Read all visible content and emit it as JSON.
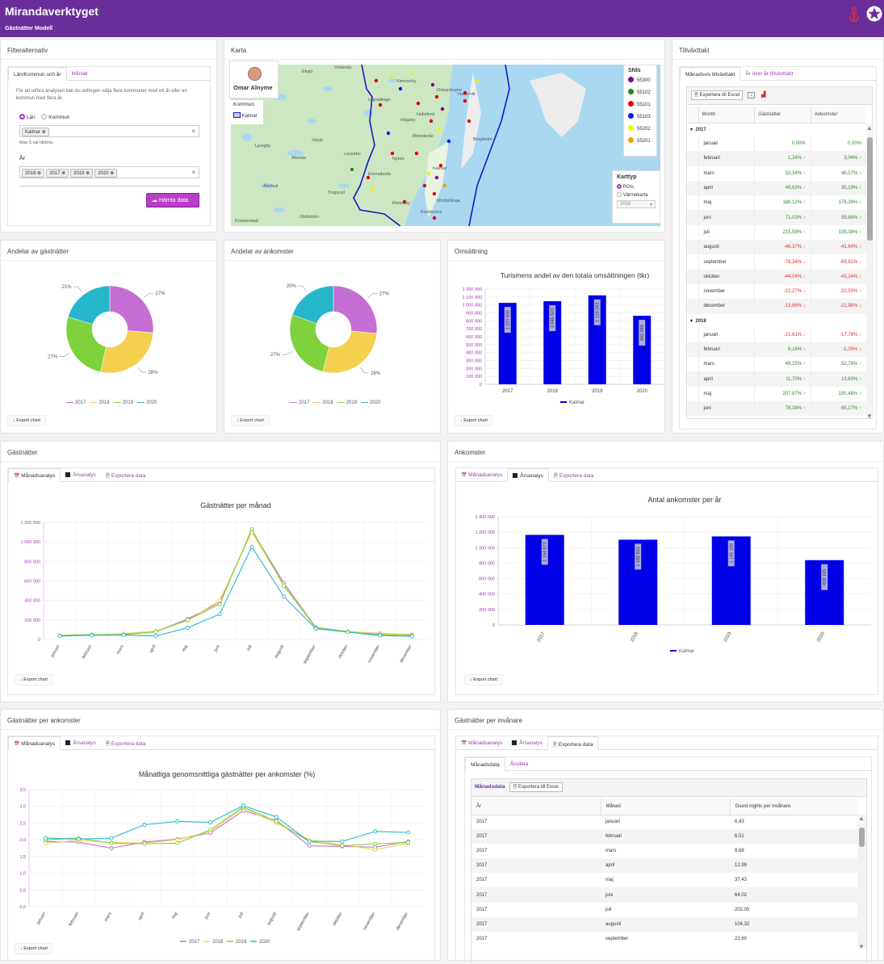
{
  "app": {
    "title": "Mirandaverktyget",
    "subtitle": "Gästnätter Modell"
  },
  "filter": {
    "title": "Filteralternativ",
    "tab1": "Län/Kommun och år",
    "tab2": "Månad",
    "desc": "För att utföra analysen kan du antingen välja flera kommuner med ett år eller en kommun med flera år.",
    "radio_lan": "Län",
    "radio_kommun": "Kommun",
    "kommun_chip": "Kalmar",
    "hint": "Max 5 val tillåtna.",
    "year_label": "År",
    "years": [
      "2018",
      "2017",
      "2019",
      "2020"
    ],
    "fetch_btn": "Hämta data"
  },
  "map": {
    "title": "Karta",
    "user": "Omar Alnyme",
    "kommun_label": "Kommun",
    "kommun_value": "Kalmar",
    "snis_title": "SNIs",
    "snis": [
      {
        "code": "55300",
        "color": "#7b0a86"
      },
      {
        "code": "55102",
        "color": "#178a17"
      },
      {
        "code": "55101",
        "color": "#e00000"
      },
      {
        "code": "55103",
        "color": "#0018e8"
      },
      {
        "code": "55202",
        "color": "#f1f200"
      },
      {
        "code": "55201",
        "color": "#f0a000"
      }
    ],
    "karttyp": "Karttyp",
    "opt1": "POIs",
    "opt2": "Värmekarta",
    "year": "2018",
    "places": [
      "Vetlanda",
      "Vimmerby",
      "Eksjö",
      "Västervik",
      "Hultsfred",
      "Oskarshamn",
      "Växjö",
      "Nybro",
      "Kalmar",
      "Emmaboda",
      "Karlskrona",
      "Ronneby",
      "Borgholm",
      "Tingsryd",
      "Lessebo",
      "Älmhult",
      "Ljungby",
      "Alvesta",
      "Olofström",
      "Uppvidinge",
      "Högsby",
      "Mönsterås",
      "Mörbylånga",
      "Kristianstad"
    ]
  },
  "growth": {
    "title": "Tillväxttakt",
    "tab1": "Månadsvis tillväxttakt",
    "tab2": "År över år tillväxttakt",
    "export": "Exportera till Excel",
    "cols": [
      "Month",
      "Gästnätter",
      "Ankomster"
    ],
    "groups": [
      {
        "year": "2017",
        "rows": [
          [
            "januari",
            "0,00%",
            "0,00%"
          ],
          [
            "februari",
            "1,34%",
            "3,04%"
          ],
          [
            "mars",
            "33,34%",
            "46,07%"
          ],
          [
            "april",
            "49,63%",
            "35,19%"
          ],
          [
            "maj",
            "188,12%",
            "176,39%"
          ],
          [
            "juni",
            "71,03%",
            "59,68%"
          ],
          [
            "juli",
            "215,59%",
            "139,38%"
          ],
          [
            "augusti",
            "-48,37%",
            "-41,64%"
          ],
          [
            "september",
            "-78,34%",
            "-69,91%"
          ],
          [
            "oktober",
            "-44,04%",
            "-43,24%"
          ],
          [
            "november",
            "-22,27%",
            "-20,93%"
          ],
          [
            "december",
            "-13,66%",
            "-21,98%"
          ]
        ]
      },
      {
        "year": "2018",
        "rows": [
          [
            "januari",
            "-21,61%",
            "-17,76%"
          ],
          [
            "februari",
            "6,16%",
            "-1,05%"
          ],
          [
            "mars",
            "49,25%",
            "52,78%"
          ],
          [
            "april",
            "11,70%",
            "13,60%"
          ],
          [
            "maj",
            "207,87%",
            "190,48%"
          ],
          [
            "juni",
            "78,38%",
            "65,17%"
          ]
        ]
      }
    ]
  },
  "andelar_g": {
    "title": "Andelar av gästnätter",
    "labels": [
      "27%",
      "28%",
      "27%",
      "21%"
    ]
  },
  "andelar_a": {
    "title": "Andelar av ankomster",
    "labels": [
      "27%",
      "28%",
      "27%",
      "20%"
    ]
  },
  "oms": {
    "title": "Omsättning",
    "chart_title": "Turismens andel av den totala omsättningen (tkr)",
    "legend": "Kalmar"
  },
  "gn": {
    "title": "Gästnätter",
    "tab1": "Månadsanalys",
    "tab2": "Årsanalys",
    "tab3": "Exportera data",
    "chart_title": "Gästnätter per månad"
  },
  "ank": {
    "title": "Ankomster",
    "tab1": "Månadsanalys",
    "tab2": "Årsanalys",
    "tab3": "Exportera data",
    "chart_title": "Antal ankomster per år",
    "legend": "Kalmar"
  },
  "gpa": {
    "title": "Gästnätter per ankomster",
    "tab1": "Månadsanalys",
    "tab2": "Årsanalys",
    "tab3": "Exportera data",
    "chart_title": "Månatliga genomsnittliga gästnätter per ankomster (%)"
  },
  "gpi": {
    "title": "Gästnätter per invånare",
    "tab1": "Månadsanalys",
    "tab2": "Årsanalys",
    "tab3": "Exportera data",
    "subtab1": "Månadsdata",
    "subtab2": "Årsdata",
    "inner_title": "Månadsdata",
    "export": "Exportera till Excel",
    "cols": [
      "År",
      "Månad",
      "Guest nights per invånare"
    ],
    "rows": [
      [
        "2017",
        "januari",
        "6,43"
      ],
      [
        "2017",
        "februari",
        "6,51"
      ],
      [
        "2017",
        "mars",
        "8,68"
      ],
      [
        "2017",
        "april",
        "12,99"
      ],
      [
        "2017",
        "maj",
        "37,43"
      ],
      [
        "2017",
        "juni",
        "64,02"
      ],
      [
        "2017",
        "juli",
        "202,05"
      ],
      [
        "2017",
        "augusti",
        "104,32"
      ],
      [
        "2017",
        "september",
        "22,60"
      ]
    ]
  },
  "export_chart": "Export chart",
  "colors": {
    "purple": "#6a2e9b",
    "accent": "#a23bb4",
    "y2017": "#c46ed3",
    "y2018": "#f5d04e",
    "y2019": "#7ed23b",
    "y2020": "#27b7cc",
    "bar": "#0000e6"
  },
  "chart_data": [
    {
      "type": "pie",
      "title": "",
      "categories": [
        "2017",
        "2018",
        "2019",
        "2020"
      ],
      "values": [
        27,
        28,
        27,
        21
      ]
    },
    {
      "type": "pie",
      "title": "",
      "categories": [
        "2017",
        "2018",
        "2019",
        "2020"
      ],
      "values": [
        27,
        28,
        27,
        20
      ]
    },
    {
      "type": "bar",
      "title": "Turismens andel av den totala omsättningen (tkr)",
      "categories": [
        "2017",
        "2018",
        "2019",
        "2020"
      ],
      "series": [
        {
          "name": "Kalmar",
          "values": [
            1025656,
            1046623,
            1120593,
            862889
          ]
        }
      ],
      "value_labels": [
        "1 025 656",
        "1 046 623",
        "1 120 593",
        "862 889"
      ],
      "yticks": [
        "0",
        "100 000",
        "200 000",
        "300 000",
        "400 000",
        "500 000",
        "600 000",
        "700 000",
        "800 000",
        "900 000",
        "1 000 000",
        "1 100 000",
        "1 200 000"
      ],
      "ylim": [
        0,
        1200000
      ]
    },
    {
      "type": "line",
      "title": "Gästnätter per månad",
      "categories": [
        "januari",
        "februari",
        "mars",
        "april",
        "maj",
        "juni",
        "juli",
        "augusti",
        "september",
        "oktober",
        "november",
        "december"
      ],
      "series": [
        {
          "name": "2017",
          "values": [
            40000,
            48000,
            55000,
            80000,
            210000,
            380000,
            1120000,
            580000,
            125000,
            80000,
            62000,
            50000
          ]
        },
        {
          "name": "2018",
          "values": [
            38000,
            45000,
            60000,
            85000,
            195000,
            400000,
            1100000,
            560000,
            120000,
            82000,
            60000,
            48000
          ]
        },
        {
          "name": "2019",
          "values": [
            42000,
            50000,
            48000,
            78000,
            200000,
            360000,
            1130000,
            550000,
            118000,
            78000,
            50000,
            40000
          ]
        },
        {
          "name": "2020",
          "values": [
            35000,
            42000,
            45000,
            35000,
            120000,
            260000,
            950000,
            440000,
            110000,
            75000,
            40000,
            32000
          ]
        }
      ],
      "yticks": [
        "0",
        "200 000",
        "400 000",
        "600 000",
        "800 000",
        "1 000 000",
        "1 200 000"
      ],
      "ylim": [
        0,
        1200000
      ]
    },
    {
      "type": "bar",
      "title": "Antal ankomster per år",
      "categories": [
        "2017",
        "2018",
        "2019",
        "2020"
      ],
      "series": [
        {
          "name": "Kalmar",
          "values": [
            1164872,
            1102631,
            1145189,
            838105
          ]
        }
      ],
      "value_labels": [
        "1 164 872",
        "1 102 631",
        "1 145 189",
        "838 105"
      ],
      "yticks": [
        "0",
        "200 000",
        "400 000",
        "600 000",
        "800 000",
        "1 000 000",
        "1 200 000",
        "1 400 000"
      ],
      "ylim": [
        0,
        1400000
      ]
    },
    {
      "type": "line",
      "title": "Månatliga genomsnittliga gästnätter per ankomster (%)",
      "categories": [
        "januari",
        "februari",
        "mars",
        "april",
        "maj",
        "juni",
        "juli",
        "augusti",
        "september",
        "oktober",
        "november",
        "december"
      ],
      "series": [
        {
          "name": "2017",
          "values": [
            1.95,
            1.93,
            1.75,
            1.93,
            2.02,
            2.2,
            2.87,
            2.58,
            1.82,
            1.8,
            1.78,
            1.95
          ]
        },
        {
          "name": "2018",
          "values": [
            1.9,
            1.98,
            1.92,
            1.9,
            2.0,
            2.25,
            2.95,
            2.5,
            2.0,
            1.85,
            1.7,
            1.9
          ]
        },
        {
          "name": "2019",
          "values": [
            2.0,
            2.05,
            1.9,
            1.88,
            1.9,
            2.3,
            2.98,
            2.55,
            1.95,
            1.82,
            1.88,
            1.92
          ]
        },
        {
          "name": "2020",
          "values": [
            2.05,
            2.02,
            2.05,
            2.45,
            2.55,
            2.52,
            3.02,
            2.68,
            1.95,
            1.95,
            2.25,
            2.22
          ]
        }
      ],
      "yticks": [
        "0,0",
        "0,5",
        "1,0",
        "1,5",
        "2,0",
        "2,5",
        "3,0",
        "3,5"
      ],
      "ylim": [
        0,
        3.5
      ]
    }
  ]
}
